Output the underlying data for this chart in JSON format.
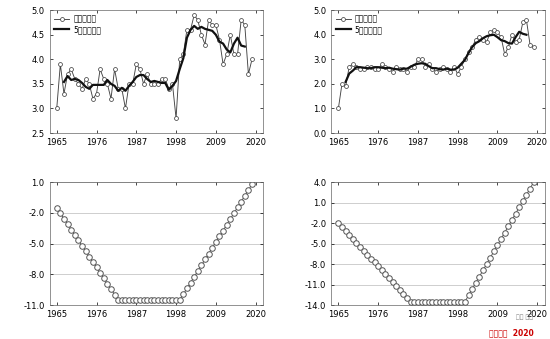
{
  "years": [
    1965,
    1966,
    1967,
    1968,
    1969,
    1970,
    1971,
    1972,
    1973,
    1974,
    1975,
    1976,
    1977,
    1978,
    1979,
    1980,
    1981,
    1982,
    1983,
    1984,
    1985,
    1986,
    1987,
    1988,
    1989,
    1990,
    1991,
    1992,
    1993,
    1994,
    1995,
    1996,
    1997,
    1998,
    1999,
    2000,
    2001,
    2002,
    2003,
    2004,
    2005,
    2006,
    2007,
    2008,
    2009,
    2010,
    2011,
    2012,
    2013,
    2014,
    2015,
    2016,
    2017,
    2018,
    2019
  ],
  "tl1": [
    3.0,
    3.9,
    3.3,
    3.7,
    3.8,
    3.6,
    3.5,
    3.4,
    3.6,
    3.5,
    3.2,
    3.3,
    3.8,
    3.6,
    3.5,
    3.2,
    3.8,
    3.4,
    3.4,
    3.0,
    3.5,
    3.5,
    3.9,
    3.8,
    3.5,
    3.7,
    3.5,
    3.5,
    3.5,
    3.6,
    3.6,
    3.4,
    3.5,
    2.8,
    4.0,
    4.1,
    4.6,
    4.6,
    4.9,
    4.8,
    4.5,
    4.3,
    4.8,
    4.7,
    4.7,
    4.4,
    3.9,
    4.1,
    4.5,
    4.1,
    4.1,
    4.8,
    4.7,
    3.7,
    4.0
  ],
  "tl2": [
    1.0,
    2.0,
    1.9,
    2.7,
    2.8,
    2.7,
    2.6,
    2.6,
    2.7,
    2.7,
    2.6,
    2.6,
    2.8,
    2.7,
    2.6,
    2.5,
    2.7,
    2.6,
    2.6,
    2.5,
    2.7,
    2.7,
    3.0,
    3.0,
    2.7,
    2.8,
    2.6,
    2.5,
    2.6,
    2.7,
    2.6,
    2.5,
    2.7,
    2.4,
    2.7,
    3.0,
    3.3,
    3.5,
    3.8,
    3.9,
    3.8,
    3.7,
    4.1,
    4.2,
    4.1,
    3.9,
    3.2,
    3.5,
    4.0,
    3.7,
    3.8,
    4.5,
    4.6,
    3.6,
    3.5
  ],
  "legend_line": "年平均气温",
  "legend_smooth": "5年滑动平均",
  "tl1_ylim": [
    2.5,
    5.0
  ],
  "tl1_yticks": [
    2.5,
    3.0,
    3.5,
    4.0,
    4.5,
    5.0
  ],
  "tl2_ylim": [
    0.0,
    5.0
  ],
  "tl2_yticks": [
    0.0,
    1.0,
    2.0,
    3.0,
    4.0,
    5.0
  ],
  "bl1_ylim": [
    -11.0,
    1.0
  ],
  "bl1_yticks": [
    -11.0,
    -8.0,
    -5.0,
    -2.0,
    1.0
  ],
  "bl2_ylim": [
    -14.0,
    4.0
  ],
  "bl2_yticks": [
    -14.0,
    -11.0,
    -8.0,
    -5.0,
    -2.0,
    1.0,
    4.0
  ],
  "xticks": [
    1965,
    1976,
    1987,
    1998,
    2009,
    2020
  ],
  "bg_color": "#ffffff",
  "line_color": "#555555",
  "smooth_color": "#111111"
}
